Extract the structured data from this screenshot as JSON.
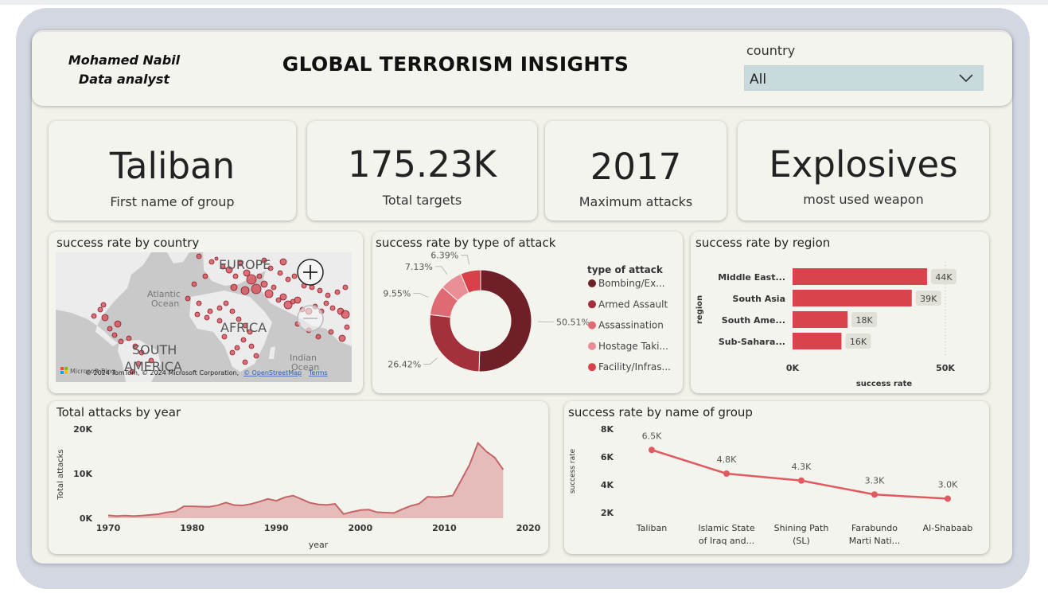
{
  "header": {
    "author_name": "Mohamed Nabil",
    "author_role": "Data analyst",
    "title": "GLOBAL TERRORISM INSIGHTS",
    "filter_label": "country",
    "filter_value": "All"
  },
  "kpis": [
    {
      "value": "Taliban",
      "label": "First name of group"
    },
    {
      "value": "175.23K",
      "label": "Total targets"
    },
    {
      "value": "2017",
      "label": "Maximum attacks"
    },
    {
      "value": "Explosives",
      "label": "most used weapon"
    }
  ],
  "map": {
    "title": "success rate by country",
    "labels": {
      "europe": "EUROPE",
      "atlantic": "Atlantic",
      "ocean": "Ocean",
      "africa": "AFRICA",
      "south": "SOUTH",
      "america": "AMERICA",
      "indian": "Indian",
      "indian_ocean": "Ocean"
    },
    "attribution_brand": "Microsoft Bing",
    "attribution": "© 2024 TomTom, © 2024 Microsoft Corporation,",
    "attribution_link1": "© OpenStreetMap",
    "attribution_link2": "Terms",
    "colors": {
      "land": "#ececec",
      "water": "#c9c9c9",
      "bubble": "#d64550",
      "bubble_stroke": "#8a1c28"
    }
  },
  "charts": [
    {
      "type": "pie",
      "title": "success rate by type of attack",
      "legend_title": "type of attack",
      "slices": [
        {
          "name": "Bombing/Ex...",
          "value": 50.51,
          "label": "50.51%",
          "color": "#6e1f27"
        },
        {
          "name": "Armed Assault",
          "value": 26.42,
          "label": "26.42%",
          "color": "#a3303b"
        },
        {
          "name": "Assassination",
          "value": 9.55,
          "label": "9.55%",
          "color": "#e06a74"
        },
        {
          "name": "Hostage Taki...",
          "value": 7.13,
          "label": "7.13%",
          "color": "#ea8e96"
        },
        {
          "name": "Facility/Infras...",
          "value": 6.39,
          "label": "6.39%",
          "color": "#d8404a"
        }
      ]
    },
    {
      "type": "bar",
      "title": "success rate by region",
      "categories": [
        "Middle East...",
        "South Asia",
        "South Ame...",
        "Sub-Sahara..."
      ],
      "values": [
        44000,
        39000,
        18000,
        16000
      ],
      "data_labels": [
        "44K",
        "39K",
        "18K",
        "16K"
      ],
      "xlabel": "success rate",
      "ylabel": "region",
      "xlim": [
        0,
        50000
      ],
      "ticks": [
        "0K",
        "50K"
      ],
      "color": "#d9434e"
    },
    {
      "type": "area",
      "title": "Total attacks by year",
      "x": [
        1970,
        1971,
        1972,
        1973,
        1974,
        1975,
        1976,
        1977,
        1978,
        1979,
        1980,
        1981,
        1982,
        1983,
        1984,
        1985,
        1986,
        1987,
        1988,
        1989,
        1990,
        1991,
        1992,
        1994,
        1995,
        1996,
        1997,
        1998,
        1999,
        2000,
        2001,
        2002,
        2003,
        2004,
        2005,
        2006,
        2007,
        2008,
        2009,
        2010,
        2011,
        2012,
        2013,
        2014,
        2015,
        2016,
        2017
      ],
      "values": [
        650,
        470,
        570,
        470,
        580,
        740,
        920,
        1320,
        1530,
        2660,
        2660,
        2590,
        2540,
        2870,
        3490,
        2920,
        2860,
        3180,
        3720,
        4320,
        3890,
        4680,
        5070,
        3460,
        3080,
        2970,
        3200,
        930,
        1400,
        1810,
        1910,
        1330,
        1260,
        1170,
        2020,
        2760,
        3240,
        4800,
        4720,
        4830,
        5080,
        8500,
        12000,
        16860,
        14950,
        13590,
        10900
      ],
      "xticks": [
        1970,
        1980,
        1990,
        2000,
        2010,
        2020
      ],
      "xtick_labels": [
        "1970",
        "1980",
        "1990",
        "2000",
        "2010",
        "2020"
      ],
      "yticks": [
        0,
        10000,
        20000
      ],
      "ytick_labels": [
        "0K",
        "10K",
        "20K"
      ],
      "xlim": [
        1970,
        2020
      ],
      "ylim": [
        0,
        20000
      ],
      "xlabel": "year",
      "ylabel": "Total attacks",
      "color": "#e2aaa9",
      "line_color": "#c46466"
    },
    {
      "type": "line",
      "title": "success rate by name of group",
      "categories": [
        "Taliban",
        "Islamic State of Iraq and...",
        "Shining Path (SL)",
        "Farabundo Marti Nati...",
        "Al-Shabaab"
      ],
      "category_lines": [
        [
          "Taliban"
        ],
        [
          "Islamic State",
          "of Iraq and..."
        ],
        [
          "Shining Path",
          "(SL)"
        ],
        [
          "Farabundo",
          "Marti Nati..."
        ],
        [
          "Al-Shabaab"
        ]
      ],
      "values": [
        6500,
        4800,
        4300,
        3300,
        3000
      ],
      "data_labels": [
        "6.5K",
        "4.8K",
        "4.3K",
        "3.3K",
        "3.0K"
      ],
      "ylabel": "success rate",
      "yticks": [
        2000,
        4000,
        6000,
        8000
      ],
      "ytick_labels": [
        "2K",
        "4K",
        "6K",
        "8K"
      ],
      "ylim": [
        2000,
        8000
      ],
      "color": "#e05a5f"
    }
  ]
}
